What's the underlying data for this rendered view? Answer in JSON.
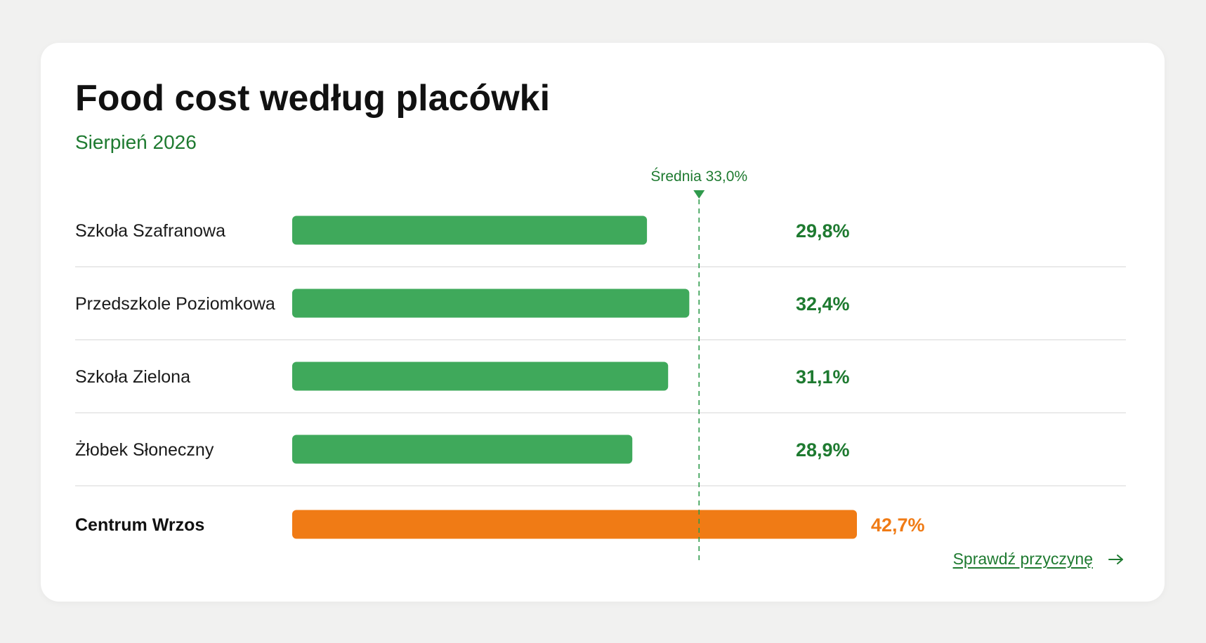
{
  "header": {
    "title": "Food cost według placówki",
    "subtitle": "Sierpień 2026"
  },
  "link": {
    "label": "Sprawdź przyczynę",
    "icon": "arrow-right-icon"
  },
  "colors": {
    "normal": "#3fa95b",
    "highlight": "#f07b15",
    "value_normal": "#1e7a30",
    "value_highlight": "#f07b15",
    "average": "#2f9a4c",
    "divider": "#e4e4e4"
  },
  "chart_data": {
    "type": "bar",
    "orientation": "horizontal",
    "title": "Food cost według placówki",
    "subtitle": "Sierpień 2026",
    "categories": [
      "Szkoła Szafranowa",
      "Przedszkole Poziomkowa",
      "Szkoła Zielona",
      "Żłobek Słoneczny",
      "Centrum Wrzos"
    ],
    "values": [
      29.8,
      32.4,
      31.1,
      28.9,
      42.7
    ],
    "value_labels": [
      "29,8%",
      "32,4%",
      "31,1%",
      "28,9%",
      "42,7%"
    ],
    "highlight_index": 4,
    "average": {
      "value": 33.0,
      "label": "Średnia 33,0%"
    },
    "xlim": [
      8,
      44
    ],
    "unit": "%",
    "grid": false,
    "legend": "none"
  }
}
